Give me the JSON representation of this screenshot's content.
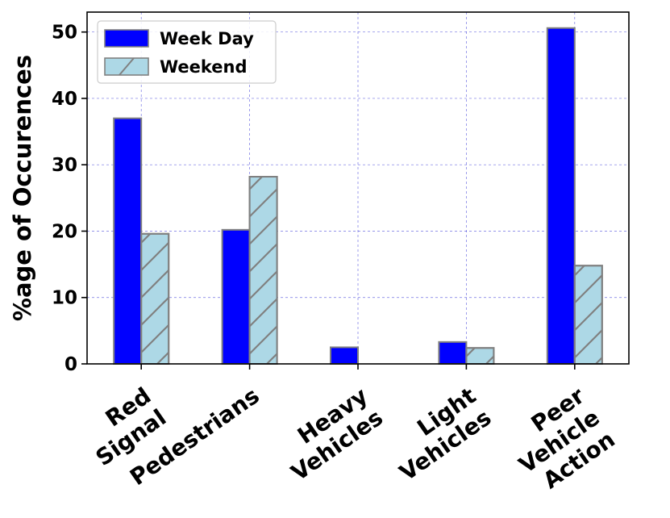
{
  "chart_data": {
    "type": "bar",
    "categories": [
      [
        "Red",
        "Signal"
      ],
      [
        "Pedestrians"
      ],
      [
        "Heavy",
        "Vehicles"
      ],
      [
        "Light",
        "Vehicles"
      ],
      [
        "Peer",
        "Vehicle",
        "Action"
      ]
    ],
    "series": [
      {
        "name": "Week Day",
        "values": [
          37.0,
          20.2,
          2.5,
          3.3,
          50.6
        ],
        "color": "#0000ff",
        "edge": "#808080",
        "hatch": false
      },
      {
        "name": "Weekend",
        "values": [
          19.6,
          28.2,
          0.0,
          2.4,
          14.8
        ],
        "color": "#add8e6",
        "edge": "#808080",
        "hatch": true
      }
    ],
    "xlabel": "",
    "ylabel": "%age of Occurences",
    "ylim": [
      0,
      53
    ],
    "yticks": [
      0,
      10,
      20,
      30,
      40,
      50
    ],
    "grid": true,
    "grid_color": "#0000cc",
    "legend_position": "top-left"
  }
}
